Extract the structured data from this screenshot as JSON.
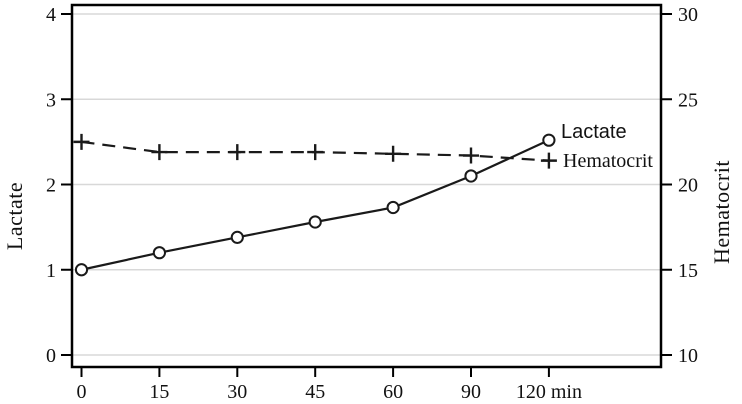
{
  "figure": {
    "background_color": "#ffffff",
    "frame_color": "#000000",
    "grid_color": "#d8d8d8",
    "line_color": "#1a1a1a",
    "text_color": "#121212"
  },
  "chart_data": {
    "type": "line",
    "title": "",
    "x_axis": {
      "values": [
        0,
        15,
        30,
        45,
        60,
        90,
        120
      ],
      "tick_labels": [
        "0",
        "15",
        "30",
        "45",
        "60",
        "90",
        "120 min"
      ],
      "unit": "min"
    },
    "left_axis": {
      "label": "Lactate",
      "range": [
        0,
        4
      ],
      "ticks": [
        0,
        1,
        2,
        3,
        4
      ],
      "tick_labels": [
        "0",
        "1",
        "2",
        "3",
        "4"
      ]
    },
    "right_axis": {
      "label": "Hematocrit",
      "range": [
        10,
        30
      ],
      "ticks": [
        10,
        15,
        20,
        25,
        30
      ],
      "tick_labels": [
        "10",
        "15",
        "20",
        "25",
        "30"
      ]
    },
    "grid": true,
    "legend_position": "inline-right",
    "series": [
      {
        "name": "Lactate",
        "axis": "left",
        "marker": "circle",
        "line_style": "solid",
        "values": [
          1.0,
          1.2,
          1.38,
          1.56,
          1.73,
          2.1,
          2.52
        ]
      },
      {
        "name": "Hematocrit",
        "axis": "right",
        "marker": "plus",
        "line_style": "dashed",
        "values": [
          22.5,
          21.9,
          21.9,
          21.9,
          21.8,
          21.7,
          21.4
        ]
      }
    ]
  }
}
